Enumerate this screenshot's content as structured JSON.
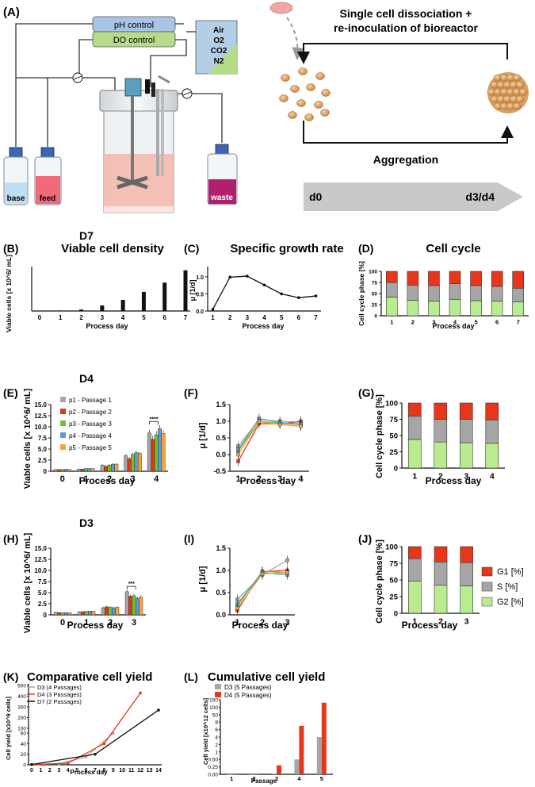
{
  "schematic": {
    "panel_label": "(A)",
    "ph_label": "pH control",
    "do_label": "DO control",
    "gas_lines": [
      "Air",
      "O2",
      "CO2",
      "N2"
    ],
    "bottles": [
      "base",
      "feed",
      "waste"
    ],
    "cycle_title_1": "Single cell dissociation +",
    "cycle_title_2": "re-inoculation of bioreactor",
    "aggregation": "Aggregation",
    "day_start": "d0",
    "day_end": "d3/d4",
    "colors": {
      "ph_box": "#a8c4e6",
      "do_box": "#b6dc8a",
      "gas_box": "#b3cfe8",
      "base": "#bfe0f2",
      "feed": "#f06a78",
      "waste": "#b0206e",
      "vessel_fill": "#f4b9ad"
    }
  },
  "row_labels": {
    "d7": "D7",
    "d4": "D4",
    "d3": "D3"
  },
  "colors": {
    "p1": "#a6a6a6",
    "p2": "#e8361b",
    "p3": "#6cc42a",
    "p4": "#5b9bd5",
    "p5": "#f7a23b",
    "g1": "#e8361b",
    "s": "#a6a6a6",
    "g2": "#b9ec8f",
    "d3line": "#a6a6a6",
    "d4line": "#e8361b",
    "d7line": "#111111"
  },
  "legends": {
    "passages": [
      "p1 - Passage 1",
      "p2 - Passage 2",
      "p3 - Passage 3",
      "p4 - Passage 4",
      "p5 - Passage 5"
    ],
    "cycle": [
      "G1 [%]",
      "S [%]",
      "G2 [%]"
    ],
    "yield": [
      "D3 (4 Passages)",
      "D4 (3 Passages)",
      "D7 (2 Passages)"
    ],
    "cumulative": [
      "D3 (5 Passages)",
      "D4 (5 Passages)"
    ]
  },
  "chart_data": [
    {
      "id": "B",
      "panel": "(B)",
      "type": "bar",
      "title": "Viable cell density",
      "xlabel": "Process day",
      "ylabel": "Viable cells [x 10^6/ mL]",
      "categories": [
        "0",
        "1",
        "2",
        "3",
        "4",
        "5",
        "6",
        "7"
      ],
      "values": [
        0.2,
        0.4,
        1.2,
        4.5,
        9,
        15.5,
        23,
        33
      ],
      "ylim": [
        0,
        36
      ]
    },
    {
      "id": "C",
      "panel": "(C)",
      "type": "line",
      "title": "Specific growth rate",
      "xlabel": "Process day",
      "ylabel": "μ [1/d]",
      "x": [
        1,
        2,
        3,
        4,
        5,
        6,
        7
      ],
      "y": [
        0.05,
        0.99,
        1.02,
        0.76,
        0.5,
        0.39,
        0.44
      ],
      "xlim": [
        0.7,
        7.3
      ],
      "ylim": [
        0,
        1.3
      ]
    },
    {
      "id": "D",
      "panel": "(D)",
      "type": "bar",
      "title": "Cell cycle",
      "xlabel": "Process day",
      "ylabel": "Cell cycle phase [%]",
      "categories": [
        "1",
        "2",
        "3",
        "4",
        "5",
        "6",
        "7"
      ],
      "g2": [
        42,
        35,
        33,
        37,
        34,
        33,
        31
      ],
      "s": [
        33,
        34,
        35,
        35,
        34,
        33,
        31
      ],
      "yticks": [
        "0",
        "25",
        "50",
        "75",
        "100"
      ],
      "ylim": [
        0,
        100
      ]
    },
    {
      "id": "E",
      "panel": "(E)",
      "type": "bar",
      "title": "",
      "xlabel": "Process day",
      "ylabel": "Viable cells [x 10^6/ mL]",
      "categories": [
        "0",
        "1",
        "2",
        "3",
        "4"
      ],
      "series": [
        {
          "name": "p1",
          "values": [
            0.4,
            0.5,
            1.4,
            3.5,
            8.6
          ]
        },
        {
          "name": "p2",
          "values": [
            0.4,
            0.5,
            1.1,
            2.8,
            7.2
          ]
        },
        {
          "name": "p3",
          "values": [
            0.4,
            0.6,
            1.4,
            3.8,
            8.2
          ]
        },
        {
          "name": "p4",
          "values": [
            0.45,
            0.6,
            1.6,
            4.2,
            9.6
          ]
        },
        {
          "name": "p5",
          "values": [
            0.4,
            0.6,
            1.6,
            4.0,
            8.5
          ]
        }
      ],
      "errors": [
        0.05,
        0.1,
        0.2,
        0.4,
        0.8
      ],
      "yticks": [
        "0",
        "2.5",
        "5.0",
        "7.5",
        "10.0",
        "12.5",
        "15.0"
      ],
      "ylim": [
        0,
        15
      ],
      "significance": "****"
    },
    {
      "id": "F",
      "panel": "(F)",
      "type": "line",
      "title": "",
      "xlabel": "Process day",
      "ylabel": "μ [1/d]",
      "x": [
        1,
        2,
        3,
        4
      ],
      "series": [
        {
          "name": "p1",
          "values": [
            0.25,
            1.05,
            1.0,
            0.97
          ]
        },
        {
          "name": "p2",
          "values": [
            -0.2,
            0.93,
            0.92,
            1.0
          ]
        },
        {
          "name": "p3",
          "values": [
            0.1,
            1.0,
            0.94,
            0.9
          ]
        },
        {
          "name": "p4",
          "values": [
            0.15,
            1.08,
            0.96,
            0.92
          ]
        },
        {
          "name": "p5",
          "values": [
            0.0,
            0.99,
            0.9,
            0.85
          ]
        }
      ],
      "yticks": [
        "-0.5",
        "0.0",
        "0.5",
        "1.0",
        "1.5"
      ],
      "ylim": [
        -0.5,
        1.5
      ],
      "xlim": [
        0.6,
        4.4
      ]
    },
    {
      "id": "G",
      "panel": "(G)",
      "type": "bar",
      "title": "",
      "xlabel": "Process day",
      "ylabel": "Cell cycle phase [%]",
      "categories": [
        "1",
        "2",
        "3",
        "4"
      ],
      "g2": [
        44,
        40,
        39,
        38
      ],
      "s": [
        36,
        35,
        36,
        36
      ],
      "yticks": [
        "0",
        "25",
        "50",
        "75",
        "100"
      ],
      "ylim": [
        0,
        100
      ]
    },
    {
      "id": "H",
      "panel": "(H)",
      "type": "bar",
      "title": "",
      "xlabel": "Process day",
      "ylabel": "Viable cells [x 10^6/ mL]",
      "categories": [
        "0",
        "1",
        "2",
        "3"
      ],
      "series": [
        {
          "name": "p1",
          "values": [
            0.6,
            0.7,
            1.6,
            5.2
          ]
        },
        {
          "name": "p2",
          "values": [
            0.5,
            0.7,
            1.8,
            4.2
          ]
        },
        {
          "name": "p3",
          "values": [
            0.5,
            0.8,
            1.7,
            4.3
          ]
        },
        {
          "name": "p4",
          "values": [
            0.5,
            0.8,
            1.6,
            3.7
          ]
        },
        {
          "name": "p5",
          "values": [
            0.5,
            0.8,
            1.7,
            4.0
          ]
        }
      ],
      "errors": [
        0.08,
        0.1,
        0.25,
        0.4
      ],
      "yticks": [
        "0",
        "2.5",
        "5.0",
        "7.5",
        "10.0",
        "12.5",
        "15.0"
      ],
      "ylim": [
        0,
        15
      ],
      "significance": "***"
    },
    {
      "id": "I",
      "panel": "(I)",
      "type": "line",
      "title": "",
      "xlabel": "Process day",
      "ylabel": "μ [1/d]",
      "x": [
        1,
        2,
        3
      ],
      "series": [
        {
          "name": "p1",
          "values": [
            0.35,
            0.9,
            1.23
          ]
        },
        {
          "name": "p2",
          "values": [
            0.1,
            0.97,
            1.0
          ]
        },
        {
          "name": "p3",
          "values": [
            0.2,
            0.98,
            0.95
          ]
        },
        {
          "name": "p4",
          "values": [
            0.25,
            0.95,
            0.9
          ]
        },
        {
          "name": "p5",
          "values": [
            0.15,
            0.92,
            0.95
          ]
        }
      ],
      "yticks": [
        "0.0",
        "0.5",
        "1.0",
        "1.5"
      ],
      "ylim": [
        0,
        1.5
      ],
      "xlim": [
        0.7,
        3.3
      ]
    },
    {
      "id": "J",
      "panel": "(J)",
      "type": "bar",
      "title": "",
      "xlabel": "Process day",
      "ylabel": "Cell cycle phase [%]",
      "categories": [
        "1",
        "2",
        "3"
      ],
      "g2": [
        48,
        42,
        41
      ],
      "s": [
        34,
        35,
        35
      ],
      "yticks": [
        "0",
        "25",
        "50",
        "75",
        "100"
      ],
      "ylim": [
        0,
        100
      ]
    },
    {
      "id": "K",
      "panel": "(K)",
      "type": "line",
      "title": "Comparative cell yield",
      "xlabel": "Process day",
      "ylabel": "Cell yield [x10^9 cells]",
      "x_ticks": [
        "0",
        "1",
        "2",
        "3",
        "4",
        "5",
        "6",
        "7",
        "8",
        "9",
        "10",
        "11",
        "12",
        "13",
        "14"
      ],
      "series": [
        {
          "name": "D3",
          "x": [
            0,
            3,
            6,
            9
          ],
          "y": [
            0.5,
            2,
            15,
            60
          ]
        },
        {
          "name": "D4",
          "x": [
            0,
            4,
            8,
            12
          ],
          "y": [
            0.5,
            3,
            40,
            430
          ]
        },
        {
          "name": "D7",
          "x": [
            0,
            7,
            14
          ],
          "y": [
            0.5,
            20,
            270
          ]
        }
      ],
      "yticks": [
        "0",
        "20",
        "40",
        "60",
        "100",
        "200",
        "300",
        "400",
        "500"
      ],
      "ylim": [
        0,
        500
      ]
    },
    {
      "id": "L",
      "panel": "(L)",
      "type": "bar",
      "title": "Cumulative cell yield",
      "xlabel": "Passage",
      "ylabel": "Cell yield [x10^12 cells]",
      "categories": [
        "1",
        "2",
        "3",
        "4",
        "5"
      ],
      "series": [
        {
          "name": "D3",
          "values": [
            0.002,
            0.005,
            0.02,
            0.5,
            4
          ]
        },
        {
          "name": "D4",
          "values": [
            0.003,
            0.01,
            0.3,
            7,
            130
          ]
        }
      ],
      "yticks": [
        "0.00",
        "0.25",
        "0.50",
        "1",
        "2",
        "4",
        "6",
        "8",
        "50",
        "100",
        "150"
      ]
    }
  ]
}
